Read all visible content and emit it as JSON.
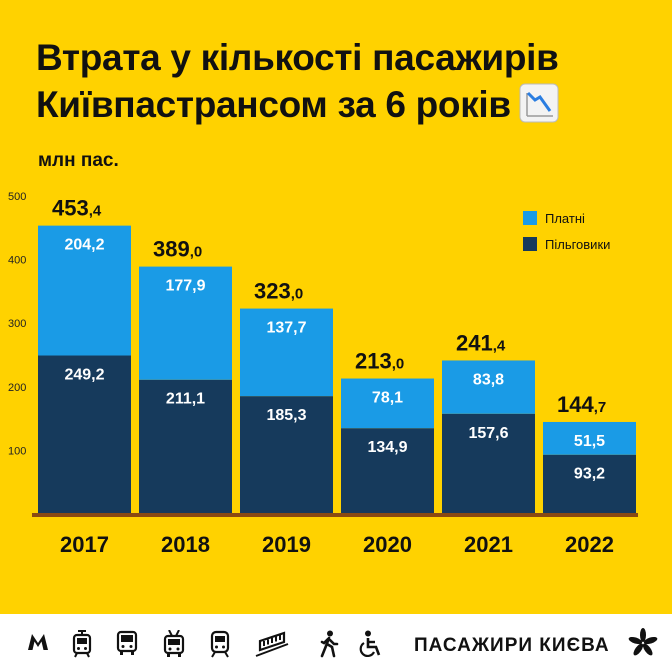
{
  "title_lines": [
    "Втрата у кількості пасажирів",
    "Київпастрансом за 6 років"
  ],
  "footer": {
    "brand": "ПАСАЖИРИ КИЄВА",
    "icons": [
      "metro-icon",
      "tram-icon",
      "bus-icon",
      "trolleybus-icon",
      "train-icon",
      "funicular-icon",
      "pedestrian-icon",
      "wheelchair-icon",
      "chestnut-leaf-icon"
    ]
  },
  "colors": {
    "background": "#ffd200",
    "paid": "#1a9be6",
    "benefit": "#163a5c",
    "baseline": "#8a4a12"
  },
  "chart_data": {
    "type": "bar",
    "stacked": true,
    "title": "Втрата у кількості пасажирів Київпастрансом за 6 років",
    "ylabel": "млн пас.",
    "xlabel": "",
    "categories": [
      "2017",
      "2018",
      "2019",
      "2020",
      "2021",
      "2022"
    ],
    "series": [
      {
        "name": "Пільговики",
        "values": [
          249.2,
          211.1,
          185.3,
          134.9,
          157.6,
          93.2
        ],
        "labels": [
          "249,2",
          "211,1",
          "185,3",
          "134,9",
          "157,6",
          "93,2"
        ]
      },
      {
        "name": "Платні",
        "values": [
          204.2,
          177.9,
          137.7,
          78.1,
          83.8,
          51.5
        ],
        "labels": [
          "204,2",
          "177,9",
          "137,7",
          "78,1",
          "83,8",
          "51,5"
        ]
      }
    ],
    "legend": [
      "Платні",
      "Пільговики"
    ],
    "legend_position": "top-right",
    "totals": [
      {
        "int": "453",
        "dec": ",4"
      },
      {
        "int": "389",
        "dec": ",0"
      },
      {
        "int": "323",
        "dec": ",0"
      },
      {
        "int": "213",
        "dec": ",0"
      },
      {
        "int": "241",
        "dec": ",4"
      },
      {
        "int": "144",
        "dec": ",7"
      }
    ],
    "yticks": [
      "100",
      "200",
      "300",
      "400",
      "500"
    ],
    "ylim": [
      0,
      500
    ],
    "grid": false
  }
}
